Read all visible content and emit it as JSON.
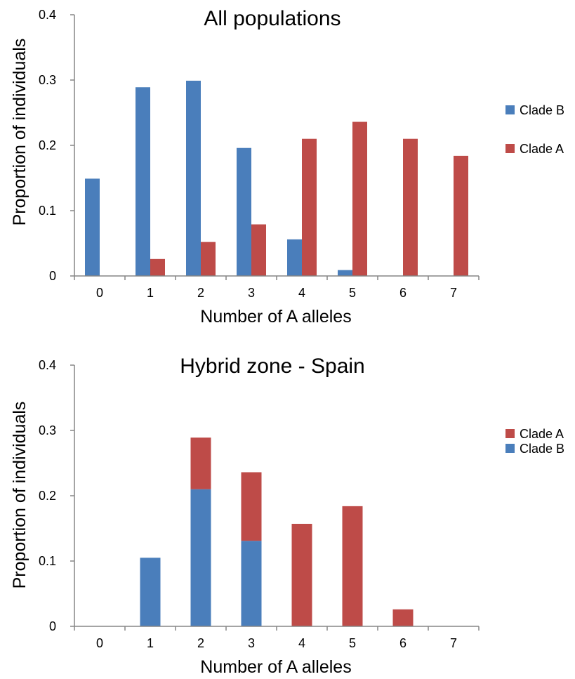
{
  "chart_data": [
    {
      "type": "bar",
      "title": "All populations",
      "xlabel": "Number of A alleles",
      "ylabel": "Proportion of individuals",
      "categories": [
        "0",
        "1",
        "2",
        "3",
        "4",
        "5",
        "6",
        "7"
      ],
      "ylim": [
        0,
        0.4
      ],
      "yticks": [
        "0",
        "0.1",
        "0.2",
        "0.3",
        "0.4"
      ],
      "stacked": false,
      "legend_position": "right",
      "series": [
        {
          "name": "Clade B",
          "color": "#4a7ebb",
          "values": [
            0.149,
            0.289,
            0.299,
            0.196,
            0.056,
            0.009,
            0,
            0
          ]
        },
        {
          "name": "Clade A",
          "color": "#be4b48",
          "values": [
            0,
            0.026,
            0.052,
            0.079,
            0.21,
            0.236,
            0.21,
            0.184
          ]
        }
      ],
      "legend": [
        {
          "name": "Clade B",
          "color": "#4a7ebb"
        },
        {
          "name": "Clade A",
          "color": "#be4b48"
        }
      ]
    },
    {
      "type": "bar",
      "title": "Hybrid zone - Spain",
      "xlabel": "Number of A alleles",
      "ylabel": "Proportion of individuals",
      "categories": [
        "0",
        "1",
        "2",
        "3",
        "4",
        "5",
        "6",
        "7"
      ],
      "ylim": [
        0,
        0.4
      ],
      "yticks": [
        "0",
        "0.1",
        "0.2",
        "0.3",
        "0.4"
      ],
      "stacked": true,
      "legend_position": "right",
      "series": [
        {
          "name": "Clade B",
          "color": "#4a7ebb",
          "values": [
            0,
            0.105,
            0.21,
            0.131,
            0,
            0,
            0,
            0
          ]
        },
        {
          "name": "Clade A",
          "color": "#be4b48",
          "values": [
            0,
            0,
            0.079,
            0.105,
            0.157,
            0.184,
            0.026,
            0
          ]
        }
      ],
      "legend": [
        {
          "name": "Clade A",
          "color": "#be4b48"
        },
        {
          "name": "Clade B",
          "color": "#4a7ebb"
        }
      ]
    }
  ]
}
